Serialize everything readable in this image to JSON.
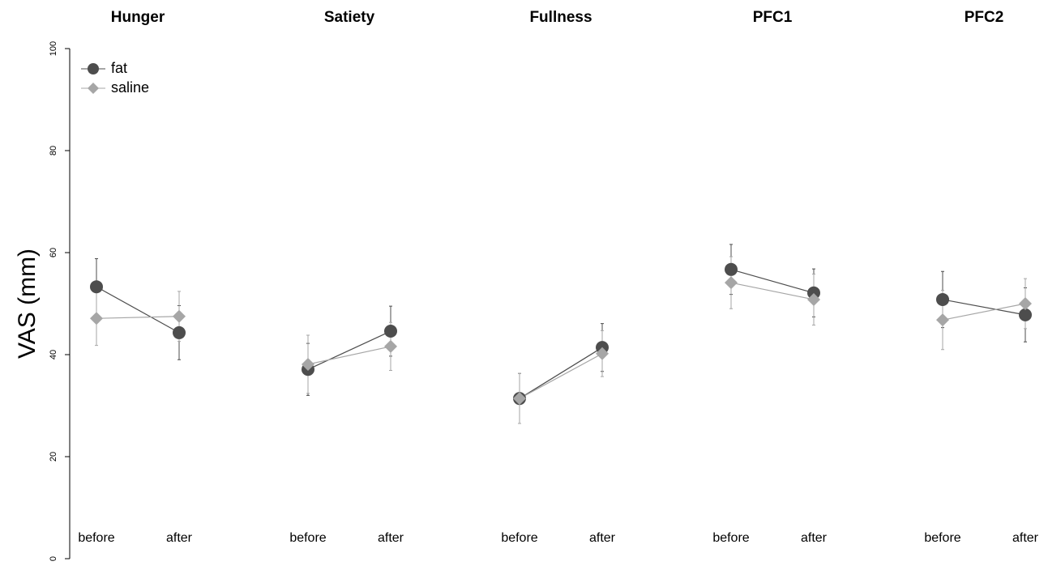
{
  "chart_data": {
    "type": "line",
    "ylabel": "VAS (mm)",
    "ylim": [
      0,
      100
    ],
    "yticks": [
      0,
      20,
      40,
      60,
      80,
      100
    ],
    "panels": [
      "Hunger",
      "Satiety",
      "Fullness",
      "PFC1",
      "PFC2"
    ],
    "categories": [
      "before",
      "after"
    ],
    "legend": "top-left",
    "series": [
      {
        "name": "fat",
        "color": "#4d4d4d",
        "marker": "circle",
        "values": [
          [
            53.3,
            44.3
          ],
          [
            37.1,
            44.6
          ],
          [
            31.4,
            41.4
          ],
          [
            56.7,
            52.1
          ],
          [
            50.8,
            47.8
          ]
        ],
        "errors": [
          [
            5.5,
            5.3
          ],
          [
            5.1,
            4.9
          ],
          [
            4.9,
            4.7
          ],
          [
            4.9,
            4.7
          ],
          [
            5.5,
            5.3
          ]
        ]
      },
      {
        "name": "saline",
        "color": "#a6a6a6",
        "marker": "diamond",
        "values": [
          [
            47.1,
            47.5
          ],
          [
            38.1,
            41.6
          ],
          [
            31.4,
            40.2
          ],
          [
            54.1,
            50.8
          ],
          [
            46.8,
            50.0
          ]
        ],
        "errors": [
          [
            5.3,
            4.9
          ],
          [
            5.7,
            4.7
          ],
          [
            4.9,
            4.5
          ],
          [
            5.1,
            5.0
          ],
          [
            5.8,
            4.9
          ]
        ]
      }
    ]
  }
}
